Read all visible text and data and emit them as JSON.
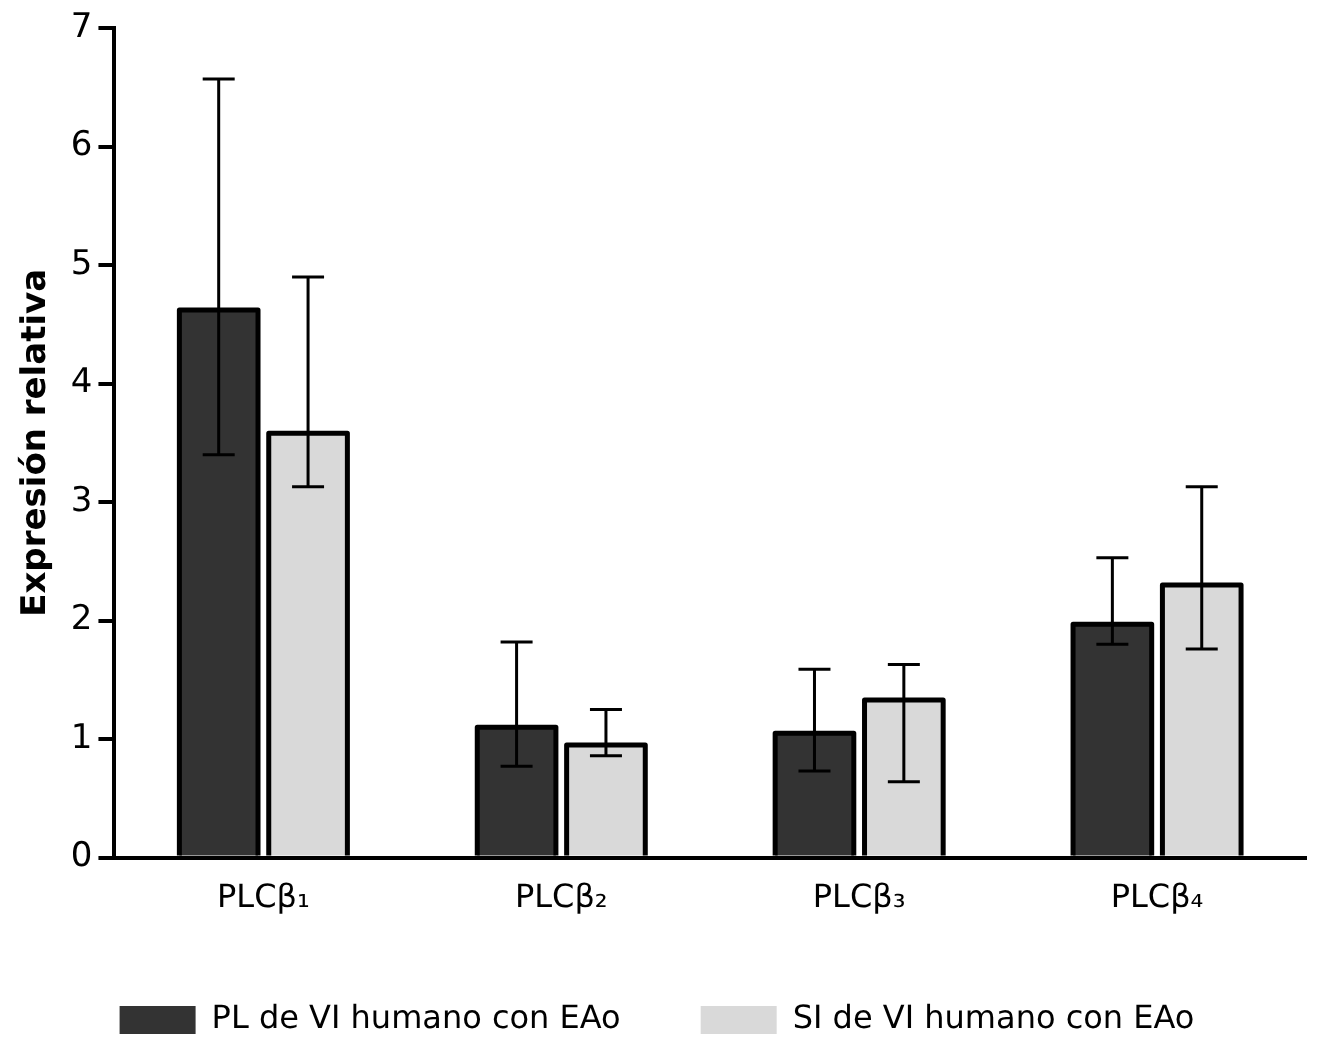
{
  "chart_data": {
    "type": "bar",
    "ylabel": "Expresión relativa",
    "categories": [
      "PLCβ₁",
      "PLCβ₂",
      "PLCβ₃",
      "PLCβ₄"
    ],
    "series": [
      {
        "name": "PL de VI humano con EAo",
        "color": "#333333",
        "values": [
          4.62,
          1.1,
          1.05,
          1.97
        ],
        "errors": [
          [
            3.4,
            6.57
          ],
          [
            0.77,
            1.82
          ],
          [
            0.73,
            1.59
          ],
          [
            1.8,
            2.53
          ]
        ]
      },
      {
        "name": "SI de VI humano con EAo",
        "color": "#d9d9d9",
        "values": [
          3.58,
          0.95,
          1.33,
          2.3
        ],
        "errors": [
          [
            3.13,
            4.9
          ],
          [
            0.86,
            1.25
          ],
          [
            0.64,
            1.63
          ],
          [
            1.76,
            3.13
          ]
        ]
      }
    ],
    "ylim": [
      0,
      7
    ],
    "yticks": [
      0,
      1,
      2,
      3,
      4,
      5,
      6,
      7
    ],
    "grid": false,
    "legend": "bottom"
  }
}
